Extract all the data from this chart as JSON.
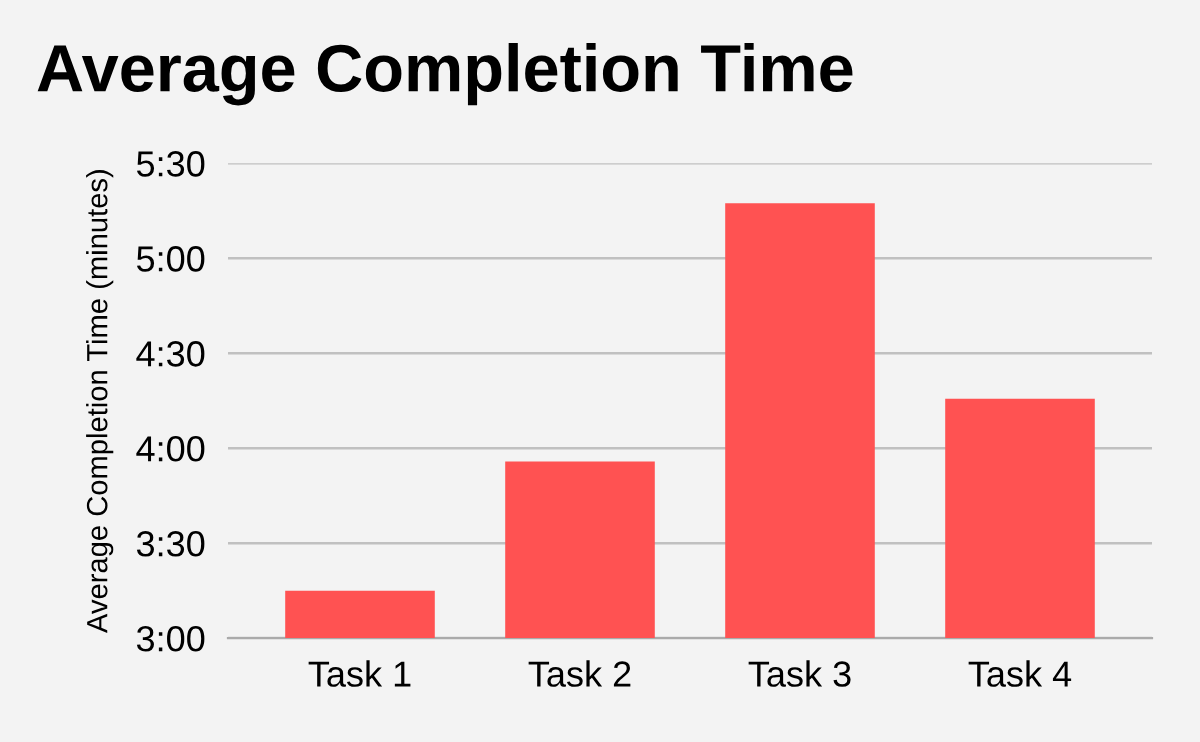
{
  "chart_data": {
    "type": "bar",
    "title": "Average Completion Time",
    "ylabel": "Average Completion Time (minutes)",
    "categories": [
      "Task 1",
      "Task 2",
      "Task 3",
      "Task 4"
    ],
    "values": [
      3.25,
      3.93,
      5.29,
      4.26
    ],
    "color": "#ff5252",
    "ylim": [
      3,
      5.5
    ],
    "yticks": [
      {
        "value": 3,
        "label": "3:00"
      },
      {
        "value": 3.5,
        "label": "3:30"
      },
      {
        "value": 4,
        "label": "4:00"
      },
      {
        "value": 4.5,
        "label": "4:30"
      },
      {
        "value": 5,
        "label": "5:00"
      },
      {
        "value": 5.5,
        "label": "5:30"
      }
    ],
    "grid": "y",
    "legend": false
  }
}
